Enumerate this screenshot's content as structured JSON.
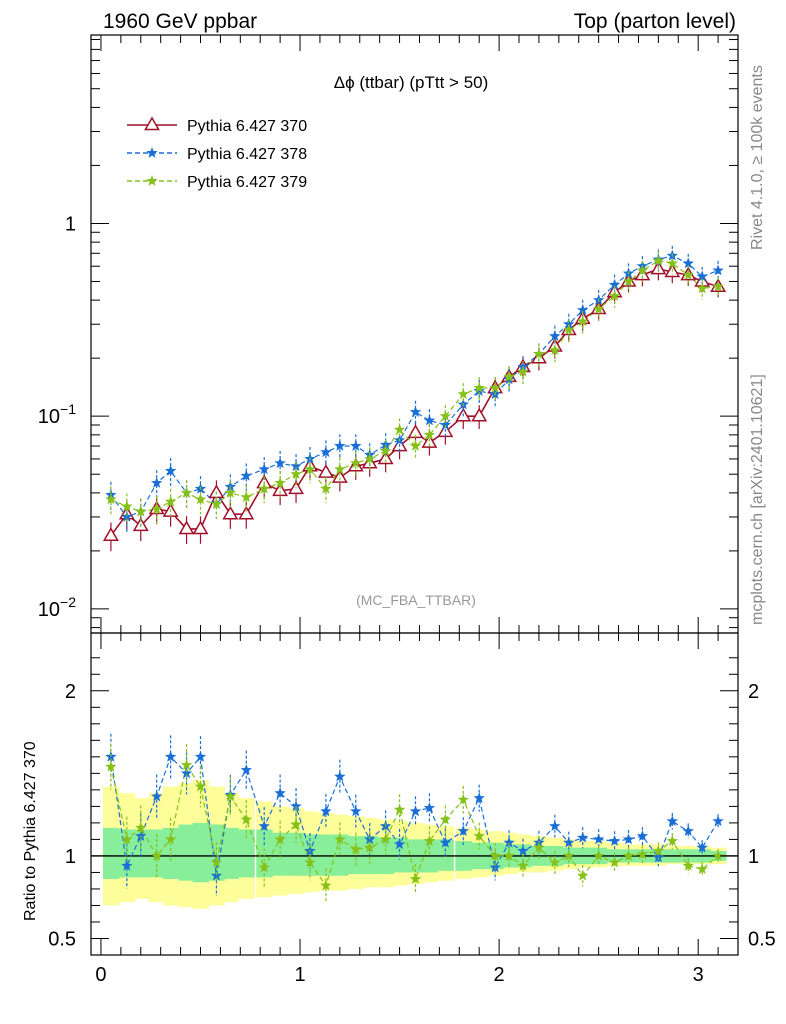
{
  "header": {
    "left": "1960 GeV ppbar",
    "right": "Top (parton level)"
  },
  "side_labels": {
    "rivet": "Rivet 4.1.0, ≥ 100k events",
    "mcplots": "mcplots.cern.ch [arXiv:2401.10621]"
  },
  "chart_data": [
    {
      "type": "line",
      "panel": "main",
      "title": "Δϕ (ttbar) (pTtt > 50)",
      "watermark": "(MC_FBA_TTBAR)",
      "xlabel": "",
      "ylabel": "",
      "yscale": "log",
      "xlim": [
        -0.05,
        3.2
      ],
      "ylim": [
        0.0075,
        9.5
      ],
      "y_ticks": [
        {
          "value": 0.01,
          "label_base": "10",
          "label_exp": "−2"
        },
        {
          "value": 0.1,
          "label_base": "10",
          "label_exp": "−1"
        },
        {
          "value": 1,
          "label_base": "1",
          "label_exp": ""
        }
      ],
      "legend_position": "top-left",
      "x": [
        0.05,
        0.13,
        0.2,
        0.28,
        0.35,
        0.43,
        0.5,
        0.58,
        0.65,
        0.73,
        0.82,
        0.9,
        0.98,
        1.05,
        1.13,
        1.2,
        1.28,
        1.35,
        1.43,
        1.5,
        1.58,
        1.65,
        1.73,
        1.82,
        1.9,
        1.98,
        2.05,
        2.12,
        2.2,
        2.28,
        2.35,
        2.42,
        2.5,
        2.58,
        2.65,
        2.72,
        2.8,
        2.87,
        2.95,
        3.02,
        3.1
      ],
      "series": [
        {
          "name": "Pythia 6.427 370",
          "color": "#a0102a",
          "marker": "triangle-open",
          "linestyle": "solid",
          "values": [
            0.024,
            0.031,
            0.027,
            0.033,
            0.032,
            0.026,
            0.026,
            0.04,
            0.031,
            0.031,
            0.045,
            0.041,
            0.042,
            0.055,
            0.051,
            0.048,
            0.055,
            0.057,
            0.06,
            0.07,
            0.082,
            0.073,
            0.083,
            0.1,
            0.1,
            0.14,
            0.16,
            0.18,
            0.2,
            0.23,
            0.28,
            0.32,
            0.36,
            0.44,
            0.5,
            0.54,
            0.58,
            0.56,
            0.54,
            0.5,
            0.47
          ]
        },
        {
          "name": "Pythia 6.427 378",
          "color": "#1a6fd6",
          "marker": "star",
          "linestyle": "dashed",
          "values": [
            0.039,
            0.03,
            0.032,
            0.045,
            0.052,
            0.04,
            0.042,
            0.035,
            0.043,
            0.049,
            0.053,
            0.057,
            0.055,
            0.06,
            0.065,
            0.07,
            0.07,
            0.063,
            0.071,
            0.075,
            0.105,
            0.095,
            0.09,
            0.115,
            0.135,
            0.13,
            0.155,
            0.18,
            0.21,
            0.26,
            0.3,
            0.355,
            0.4,
            0.48,
            0.55,
            0.6,
            0.65,
            0.68,
            0.62,
            0.53,
            0.57
          ]
        },
        {
          "name": "Pythia 6.427 379",
          "color": "#86c11a",
          "marker": "star",
          "linestyle": "dashed",
          "values": [
            0.037,
            0.034,
            0.032,
            0.033,
            0.036,
            0.04,
            0.037,
            0.035,
            0.04,
            0.038,
            0.042,
            0.045,
            0.05,
            0.053,
            0.042,
            0.053,
            0.057,
            0.06,
            0.066,
            0.085,
            0.07,
            0.08,
            0.1,
            0.13,
            0.14,
            0.14,
            0.16,
            0.17,
            0.21,
            0.22,
            0.28,
            0.31,
            0.36,
            0.42,
            0.5,
            0.57,
            0.64,
            0.62,
            0.54,
            0.46,
            0.47
          ]
        }
      ]
    },
    {
      "type": "line",
      "panel": "ratio",
      "ylabel": "Ratio to Pythia 6.427 370",
      "xlim": [
        -0.05,
        3.2
      ],
      "ylim": [
        0.4,
        2.35
      ],
      "x_ticks": [
        0,
        1,
        2,
        3
      ],
      "y_ticks": [
        0.5,
        1,
        2
      ],
      "reference": 1.0,
      "bands": {
        "green": {
          "lo": [
            0.86,
            0.87,
            0.87,
            0.87,
            0.86,
            0.85,
            0.84,
            0.85,
            0.86,
            0.87,
            0.87,
            0.88,
            0.88,
            0.88,
            0.88,
            0.88,
            0.89,
            0.89,
            0.89,
            0.9,
            0.9,
            0.9,
            0.91,
            0.91,
            0.92,
            0.92,
            0.93,
            0.93,
            0.94,
            0.94,
            0.95,
            0.95,
            0.95,
            0.96,
            0.96,
            0.96,
            0.96,
            0.96,
            0.96,
            0.96,
            0.97
          ],
          "hi": [
            1.17,
            1.16,
            1.16,
            1.16,
            1.17,
            1.19,
            1.2,
            1.19,
            1.17,
            1.16,
            1.16,
            1.14,
            1.14,
            1.13,
            1.13,
            1.13,
            1.12,
            1.12,
            1.11,
            1.11,
            1.1,
            1.1,
            1.1,
            1.09,
            1.08,
            1.08,
            1.07,
            1.07,
            1.06,
            1.06,
            1.05,
            1.05,
            1.05,
            1.04,
            1.04,
            1.04,
            1.04,
            1.04,
            1.04,
            1.04,
            1.03
          ]
        },
        "yellow": {
          "lo": [
            0.7,
            0.72,
            0.74,
            0.72,
            0.7,
            0.69,
            0.68,
            0.7,
            0.72,
            0.74,
            0.75,
            0.76,
            0.77,
            0.78,
            0.79,
            0.79,
            0.8,
            0.81,
            0.81,
            0.82,
            0.83,
            0.84,
            0.85,
            0.86,
            0.87,
            0.88,
            0.89,
            0.9,
            0.9,
            0.91,
            0.92,
            0.93,
            0.93,
            0.94,
            0.94,
            0.94,
            0.94,
            0.95,
            0.95,
            0.95,
            0.95
          ],
          "hi": [
            1.42,
            1.38,
            1.35,
            1.38,
            1.42,
            1.44,
            1.46,
            1.42,
            1.38,
            1.35,
            1.33,
            1.3,
            1.29,
            1.27,
            1.26,
            1.25,
            1.24,
            1.23,
            1.22,
            1.21,
            1.2,
            1.19,
            1.18,
            1.17,
            1.16,
            1.15,
            1.14,
            1.13,
            1.12,
            1.11,
            1.1,
            1.09,
            1.09,
            1.08,
            1.07,
            1.07,
            1.07,
            1.06,
            1.06,
            1.06,
            1.05
          ]
        }
      },
      "series": [
        {
          "name": "Pythia 6.427 378",
          "color": "#1a6fd6",
          "marker": "star",
          "linestyle": "dashed",
          "values": [
            1.6,
            0.94,
            1.12,
            1.36,
            1.6,
            1.5,
            1.6,
            0.88,
            1.37,
            1.52,
            1.18,
            1.38,
            1.3,
            1.03,
            1.27,
            1.48,
            1.27,
            1.1,
            1.18,
            1.07,
            1.27,
            1.29,
            1.08,
            1.15,
            1.35,
            0.93,
            1.08,
            1.03,
            1.08,
            1.18,
            1.08,
            1.11,
            1.1,
            1.09,
            1.1,
            1.12,
            0.99,
            1.21,
            1.15,
            1.05,
            1.21
          ]
        },
        {
          "name": "Pythia 6.427 379",
          "color": "#86c11a",
          "marker": "star",
          "linestyle": "dashed",
          "values": [
            1.54,
            1.1,
            1.17,
            1.0,
            1.1,
            1.55,
            1.42,
            0.96,
            1.36,
            1.22,
            0.93,
            1.1,
            1.19,
            0.96,
            0.82,
            1.1,
            1.04,
            1.05,
            1.1,
            1.28,
            0.86,
            1.09,
            1.22,
            1.34,
            1.12,
            1.0,
            1.0,
            0.94,
            1.05,
            0.96,
            1.0,
            0.88,
            1.0,
            0.96,
            1.0,
            1.01,
            1.03,
            1.09,
            0.94,
            0.92,
            1.0
          ]
        }
      ]
    }
  ]
}
